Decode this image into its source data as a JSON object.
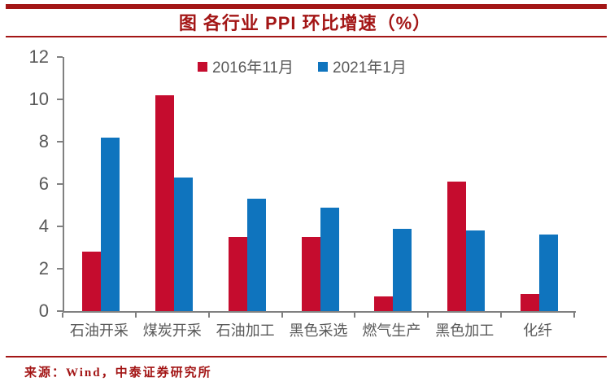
{
  "header": {
    "title": "图 各行业 PPI 环比增速（%）"
  },
  "legend": [
    {
      "label": "2016年11月",
      "color": "#c50c2e"
    },
    {
      "label": "2021年1月",
      "color": "#0f74be"
    }
  ],
  "chart_data": {
    "type": "bar",
    "title": "图 各行业 PPI 环比增速（%）",
    "categories": [
      "石油开采",
      "煤炭开采",
      "石油加工",
      "黑色采选",
      "燃气生产",
      "黑色加工",
      "化纤"
    ],
    "series": [
      {
        "name": "2016年11月",
        "color": "#c50c2e",
        "values": [
          2.8,
          10.2,
          3.5,
          3.5,
          0.7,
          6.1,
          0.8
        ]
      },
      {
        "name": "2021年1月",
        "color": "#0f74be",
        "values": [
          8.2,
          6.3,
          5.3,
          4.9,
          3.9,
          3.8,
          3.6
        ]
      }
    ],
    "xlabel": "",
    "ylabel": "",
    "ylim": [
      0,
      12
    ],
    "y_ticks": [
      0,
      2,
      4,
      6,
      8,
      10,
      12
    ],
    "grid": false,
    "legend_position": "top-center"
  },
  "footer": {
    "source": "来源：Wind，中泰证券研究所"
  },
  "colors": {
    "accent_red": "#a31616",
    "bar_red": "#c50c2e",
    "bar_blue": "#0f74be",
    "axis_gray": "#808080",
    "text_gray": "#595959"
  }
}
